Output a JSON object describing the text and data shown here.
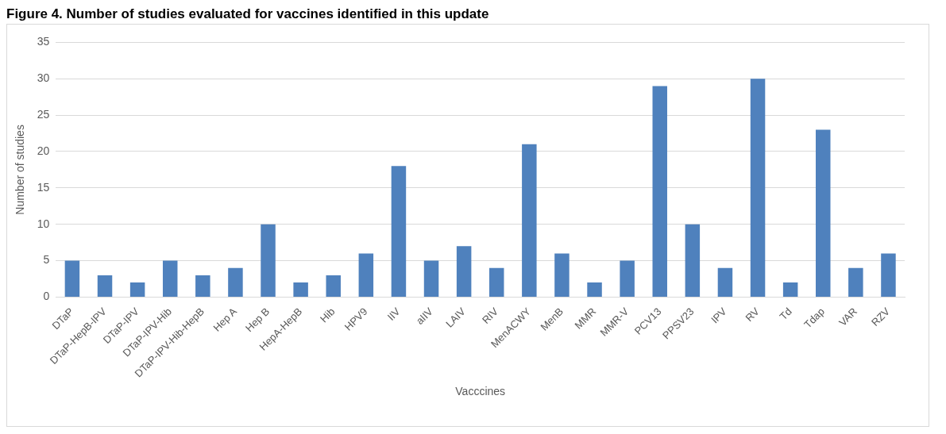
{
  "chart_data": {
    "type": "bar",
    "title": "Figure 4. Number of studies evaluated for vaccines identified in this update",
    "xlabel": "Vacccines",
    "ylabel": "Number of studies",
    "categories": [
      "DTaP",
      "DTaP-HepB-IPV",
      "DTaP-IPV",
      "DTaP-IPV-Hib",
      "DTaP-IPV-Hib-HepB",
      "Hep A",
      "Hep B",
      "HepA-HepB",
      "Hib",
      "HPV9",
      "IIV",
      "aIIV",
      "LAIV",
      "RIV",
      "MenACWY",
      "MenB",
      "MMR",
      "MMR-V",
      "PCV13",
      "PPSV23",
      "IPV",
      "RV",
      "Td",
      "Tdap",
      "VAR",
      "RZV"
    ],
    "values": [
      5,
      3,
      2,
      5,
      3,
      4,
      10,
      2,
      3,
      6,
      18,
      5,
      7,
      4,
      21,
      6,
      2,
      5,
      29,
      10,
      4,
      30,
      2,
      23,
      4,
      6
    ],
    "color": "#4f81bd",
    "ylim": [
      0,
      35
    ],
    "yticks": [
      0,
      5,
      10,
      15,
      20,
      25,
      30,
      35
    ],
    "grid": "y",
    "legend": false
  }
}
